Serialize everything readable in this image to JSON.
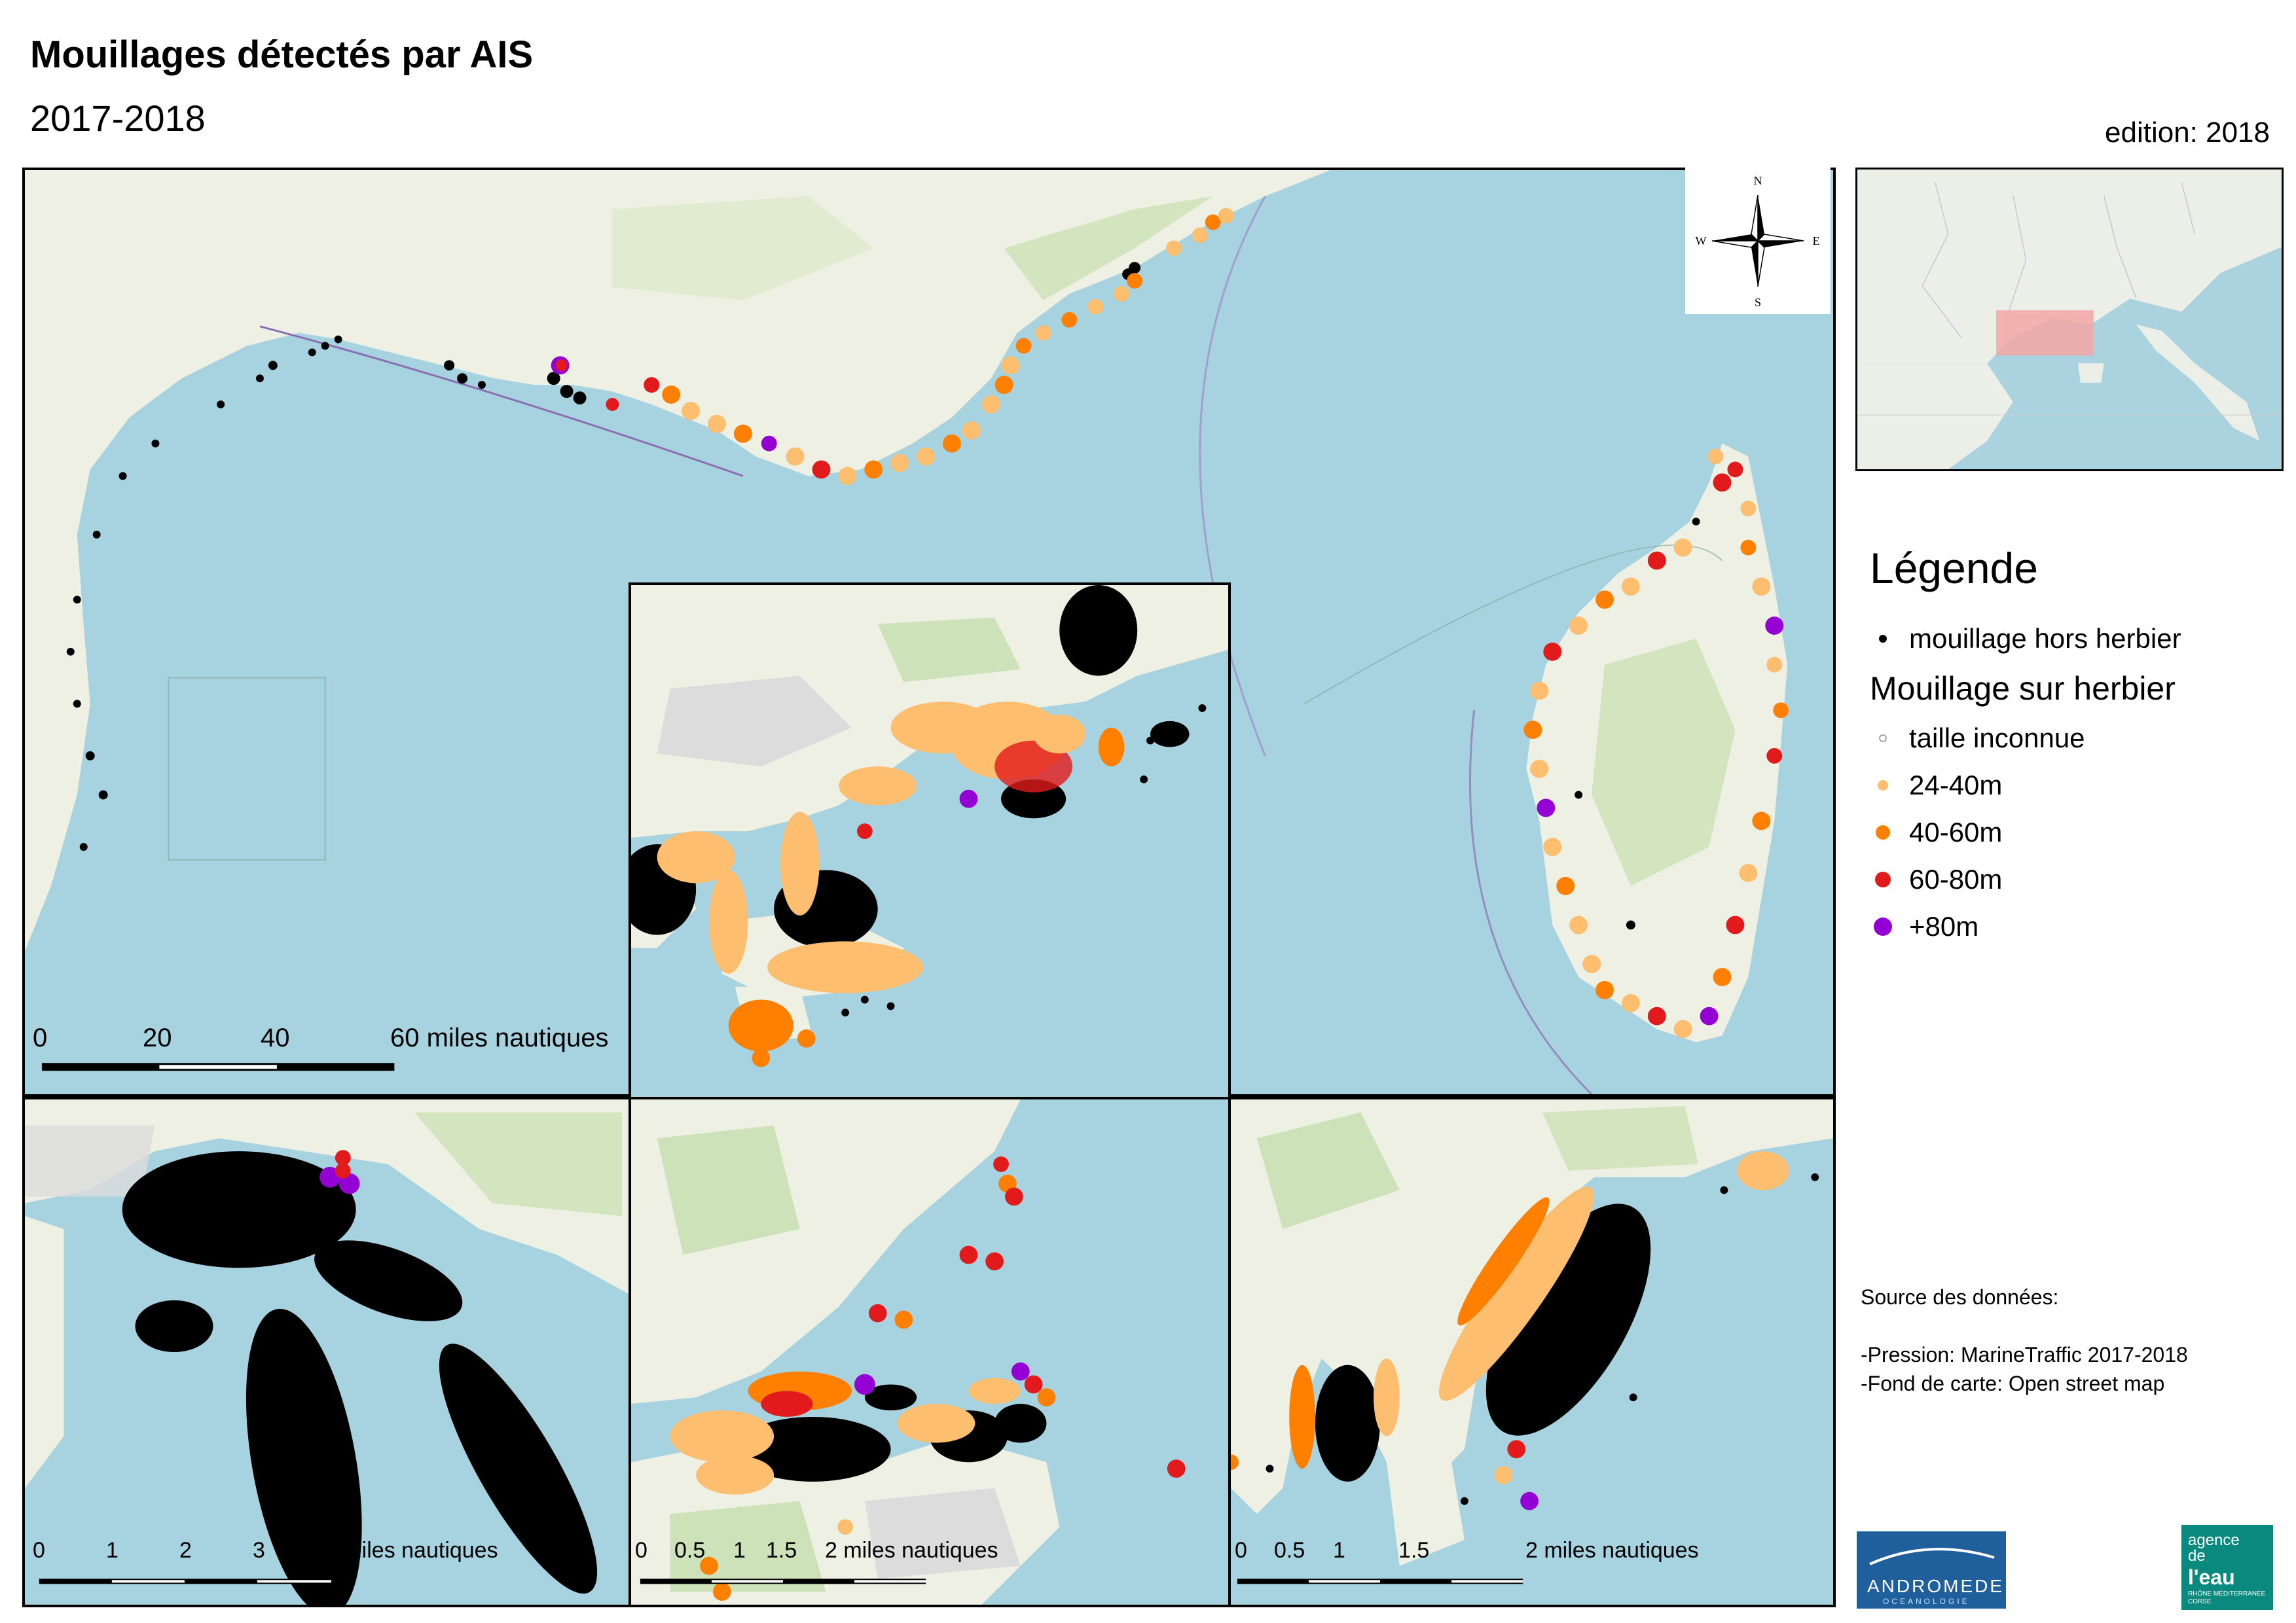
{
  "header": {
    "title": "Mouillages détectés par AIS",
    "subtitle": "2017-2018",
    "edition": "edition: 2018"
  },
  "compass": {
    "n": "N",
    "s": "S",
    "e": "E",
    "w": "W"
  },
  "main_scale": {
    "labels": [
      "0",
      "20",
      "40",
      "60 miles nautiques"
    ]
  },
  "marseille_scale": {
    "labels": [
      "0",
      "1",
      "2",
      "3",
      "4 miles nautiques"
    ]
  },
  "stmaxime_scale": {
    "labels": [
      "0",
      "0.5",
      "1",
      "1.5",
      "2 miles nautiques"
    ]
  },
  "villefranche_scale": {
    "labels": [
      "0",
      "0.5",
      "1",
      "1.5",
      "2 miles nautiques"
    ]
  },
  "legend": {
    "title": "Légende",
    "hors_herbier": "mouillage hors herbier",
    "sur_herbier_title": "Mouillage sur herbier",
    "classes": [
      {
        "label": "taille inconnue",
        "color": "#ffffff"
      },
      {
        "label": "24-40m",
        "color": "#fdbf6f"
      },
      {
        "label": "40-60m",
        "color": "#ff7f00"
      },
      {
        "label": "60-80m",
        "color": "#e31a1c"
      },
      {
        "label": "+80m",
        "color": "#9400d3"
      }
    ],
    "hors_color": "#000000"
  },
  "source": {
    "title": "Source des données:",
    "lines": [
      "-Pression: MarineTraffic 2017-2018",
      "-Fond de carte: Open street map"
    ]
  },
  "logos": {
    "andromede": "ANDROMEDE",
    "andromede_tag": "OCEANOLOGIE",
    "agence_1": "agence",
    "agence_2": "de",
    "agence_3": "l'eau",
    "agence_4": "RHÔNE MÉDITERRANÉE CORSE"
  },
  "colors": {
    "sea": "#a7d2e0",
    "land": "#eef0e4",
    "forest": "#c6dfae",
    "urban": "#dcdcdc",
    "overview_extent": "#f4a6a6"
  }
}
